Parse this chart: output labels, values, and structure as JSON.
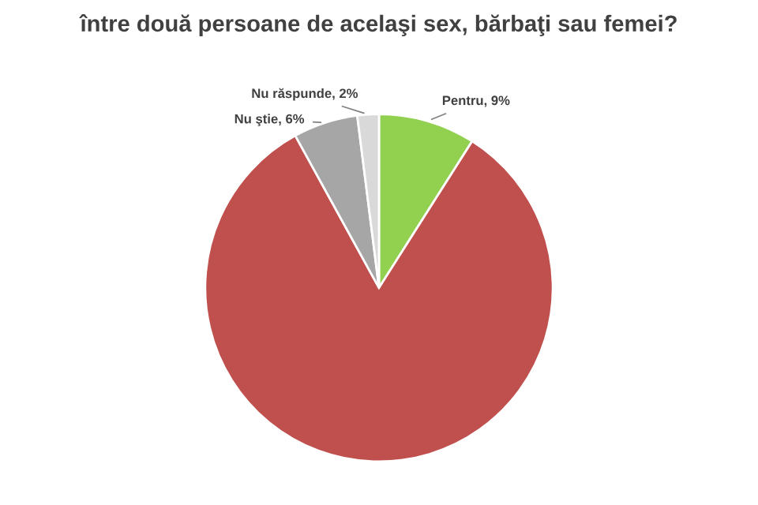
{
  "chart_data": {
    "type": "pie",
    "title": "între două persoane de acelaşi sex, bărbaţi sau femei?",
    "categories": [
      "Pentru",
      null,
      "Nu ştie",
      "Nu răspunde"
    ],
    "values": [
      9,
      83,
      6,
      2
    ],
    "value_labels": [
      "9%",
      null,
      "6%",
      "2%"
    ],
    "colors": [
      "#92d050",
      "#c0504d",
      "#a6a6a6",
      "#d9d9d9"
    ]
  }
}
